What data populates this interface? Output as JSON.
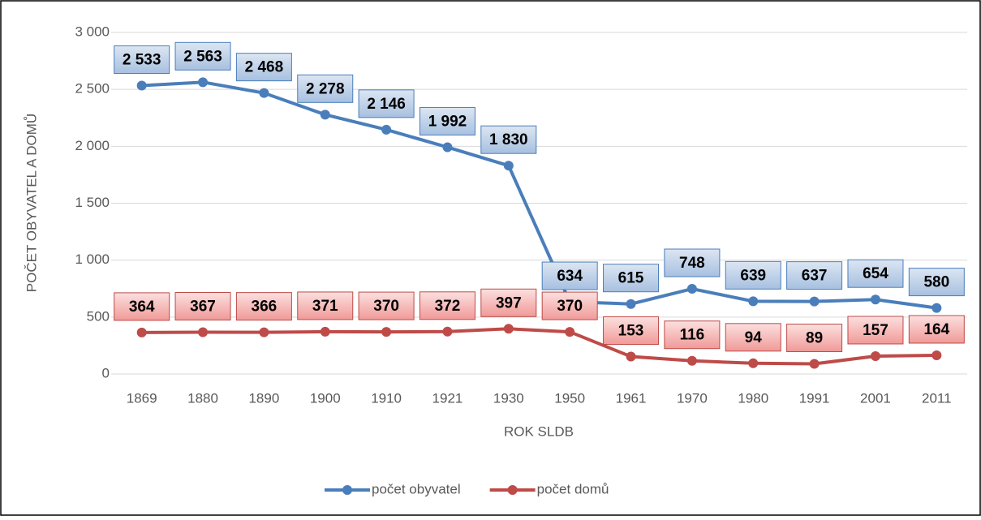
{
  "chart_data": {
    "type": "line",
    "categories": [
      "1869",
      "1880",
      "1890",
      "1900",
      "1910",
      "1921",
      "1930",
      "1950",
      "1961",
      "1970",
      "1980",
      "1991",
      "2001",
      "2011"
    ],
    "series": [
      {
        "name": "počet obyvatel",
        "color": "#4a7ebb",
        "values": [
          2533,
          2563,
          2468,
          2278,
          2146,
          1992,
          1830,
          634,
          615,
          748,
          639,
          637,
          654,
          580
        ],
        "value_labels": [
          "2 533",
          "2 563",
          "2 468",
          "2 278",
          "2 146",
          "1 992",
          "1 830",
          "634",
          "615",
          "748",
          "639",
          "637",
          "654",
          "580"
        ]
      },
      {
        "name": "počet domů",
        "color": "#be4b48",
        "values": [
          364,
          367,
          366,
          371,
          370,
          372,
          397,
          370,
          153,
          116,
          94,
          89,
          157,
          164
        ]
      }
    ],
    "ylim": [
      0,
      3000
    ],
    "yticks": [
      0,
      500,
      {
        "value": 1000,
        "label": "1 000"
      },
      {
        "value": 1500,
        "label": "1 500"
      },
      {
        "value": 2000,
        "label": "2 000"
      },
      {
        "value": 2500,
        "label": "2 500"
      },
      {
        "value": 3000,
        "label": "3 000"
      }
    ],
    "ylabel": "POČET OBYVATEL A DOMŮ",
    "xlabel": "ROK SLDB",
    "grid": true,
    "legend": "bottom"
  }
}
